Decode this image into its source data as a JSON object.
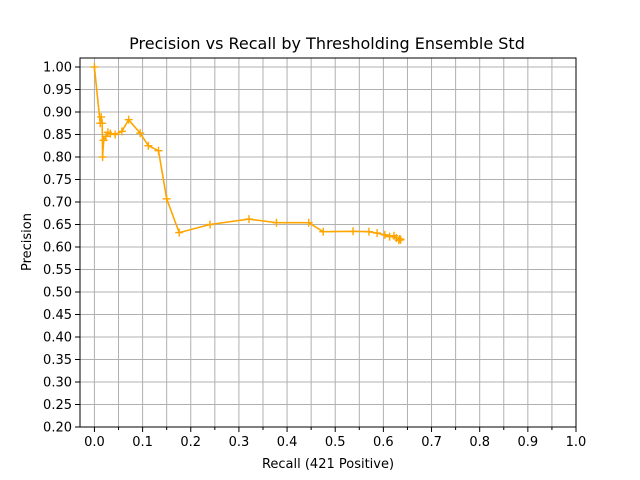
{
  "chart_data": {
    "type": "line",
    "title": "Precision vs Recall by Thresholding Ensemble Std",
    "xlabel": "Recall (421 Positive)",
    "ylabel": "Precision",
    "xlim": [
      -0.03,
      1.0
    ],
    "ylim": [
      0.2,
      1.02
    ],
    "x_ticks": [
      "0.0",
      "0.1",
      "0.2",
      "0.3",
      "0.4",
      "0.5",
      "0.6",
      "0.7",
      "0.8",
      "0.9",
      "1.0"
    ],
    "y_ticks": [
      "0.20",
      "0.25",
      "0.30",
      "0.35",
      "0.40",
      "0.45",
      "0.50",
      "0.55",
      "0.60",
      "0.65",
      "0.70",
      "0.75",
      "0.80",
      "0.85",
      "0.90",
      "0.95",
      "1.00"
    ],
    "grid": true,
    "color": "#ffa500",
    "marker": "plus",
    "series": [
      {
        "x": [
          0.0,
          0.012,
          0.014,
          0.016,
          0.017,
          0.019,
          0.024,
          0.028,
          0.033,
          0.043,
          0.057,
          0.071,
          0.095,
          0.112,
          0.133,
          0.15,
          0.176,
          0.24,
          0.321,
          0.378,
          0.445,
          0.475,
          0.537,
          0.57,
          0.587,
          0.603,
          0.613,
          0.622,
          0.627,
          0.632,
          0.634,
          0.636
        ],
        "y": [
          1.0,
          0.875,
          0.889,
          0.875,
          0.8,
          0.837,
          0.846,
          0.855,
          0.852,
          0.85,
          0.857,
          0.883,
          0.853,
          0.825,
          0.814,
          0.707,
          0.632,
          0.65,
          0.662,
          0.654,
          0.654,
          0.634,
          0.635,
          0.634,
          0.631,
          0.627,
          0.623,
          0.625,
          0.62,
          0.615,
          0.618,
          0.616
        ]
      }
    ]
  }
}
